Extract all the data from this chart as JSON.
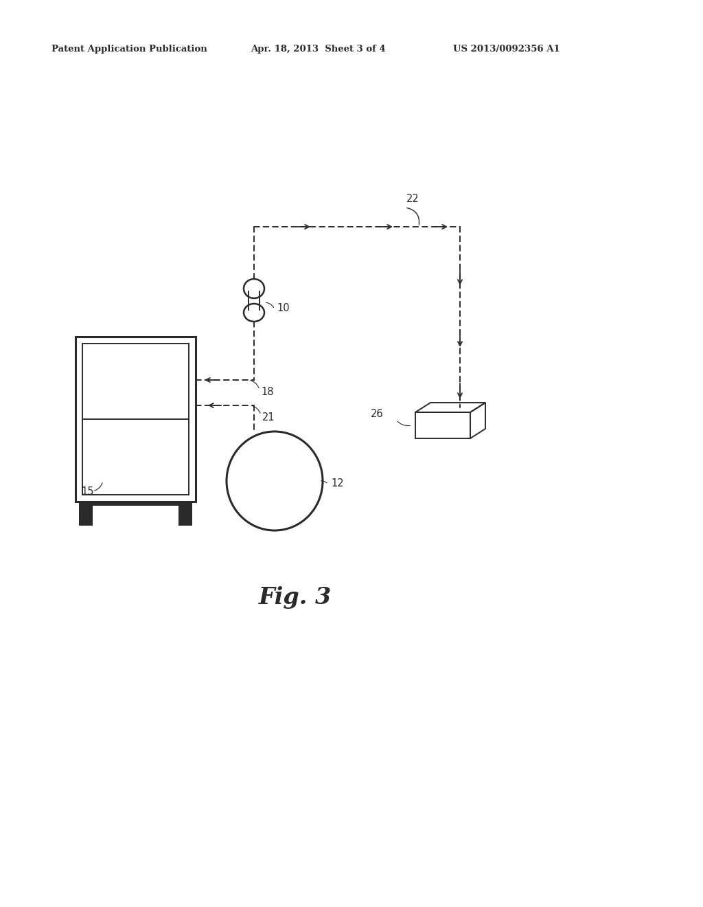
{
  "bg_color": "#ffffff",
  "line_color": "#2a2a2a",
  "header_text1": "Patent Application Publication",
  "header_text2": "Apr. 18, 2013  Sheet 3 of 4",
  "header_text3": "US 2013/0092356 A1",
  "fig_label": "Fig. 3",
  "lw_main": 1.4,
  "lw_thick": 2.2,
  "label_fs": 10.5,
  "fig_caption_fs": 24
}
